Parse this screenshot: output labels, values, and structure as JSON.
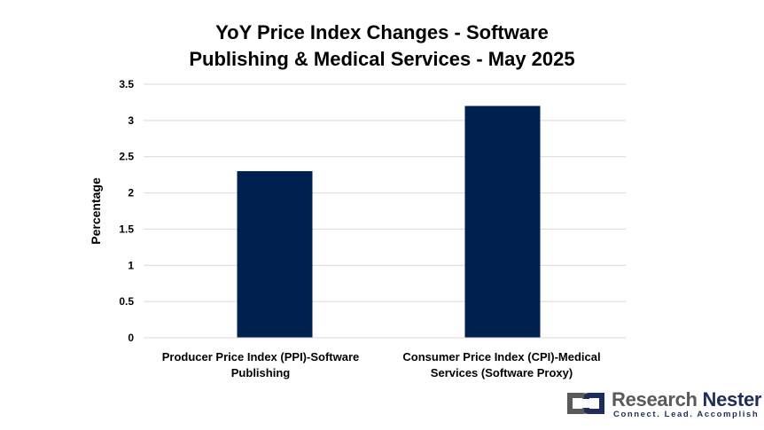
{
  "chart_data": {
    "type": "bar",
    "title": [
      "YoY Price Index Changes - Software",
      "Publishing & Medical Services - May 2025"
    ],
    "categories": [
      [
        "Producer Price Index (PPI)-Software",
        "Publishing"
      ],
      [
        "Consumer Price Index (CPI)-Medical",
        "Services (Software Proxy)"
      ]
    ],
    "values": [
      2.3,
      3.2
    ],
    "ylabel": "Percentage",
    "xlabel": "",
    "ylim": [
      0,
      3.5
    ],
    "yticks": [
      "0",
      "0.5",
      "1",
      "1.5",
      "2",
      "2.5",
      "3",
      "3.5"
    ],
    "grid": true,
    "legend": "none",
    "bar_color": "#002050"
  },
  "branding": {
    "name_part1": "Research",
    "name_part2": "Nester",
    "tagline": "Connect. Lead. Accomplish",
    "logo_icon": "research-nester-logo-icon"
  }
}
